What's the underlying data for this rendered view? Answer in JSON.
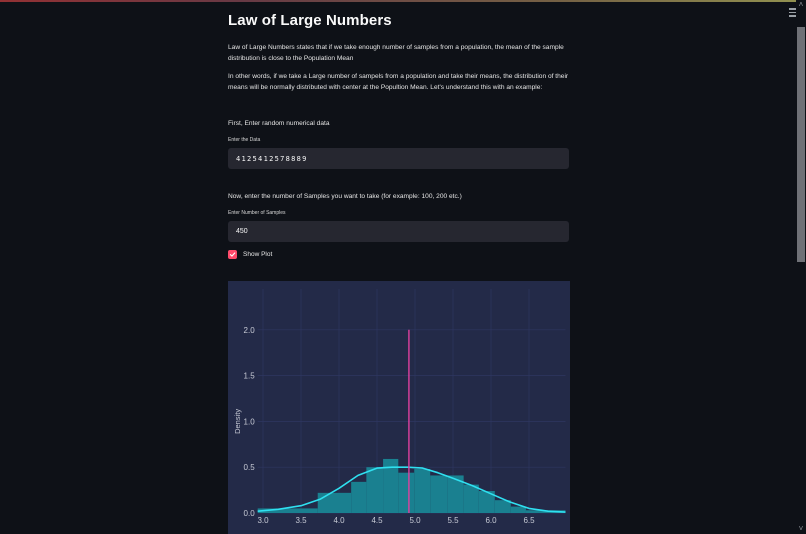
{
  "page": {
    "title": "Law of Large Numbers",
    "intro_paragraph_1": "Law of Large Numbers states that if we take enough number of samples from a population, the mean of the sample distribution is close to the Population Mean",
    "intro_paragraph_2": "In other words, if we take a Large number of sampels from a population and take their means, the distribution of their means will be normally distributed with center at the Popultion Mean. Let's understand this with an example:",
    "step_1_text": "First, Enter random numerical data",
    "step_2_text": "Now, enter the number of Samples you want to take (for example: 100, 200 etc.)"
  },
  "form": {
    "data_input": {
      "label": "Enter the Data",
      "value": "4125412578889"
    },
    "samples_input": {
      "label": "Enter Number of Samples",
      "value": "450"
    },
    "show_plot": {
      "label": "Show Plot",
      "checked": true
    }
  },
  "icons": {
    "menu": "hamburger-menu-icon",
    "checkbox": "checkmark-icon",
    "scroll_up": "˄",
    "scroll_down": "˅"
  },
  "colors": {
    "background": "#0e1117",
    "input_bg": "#262730",
    "accent": "#ff4b6b",
    "chart_bg": "#232a48",
    "hist_fill": "#1a8090",
    "kde_line": "#2fe0f0",
    "mean_line": "#e040a0"
  },
  "chart_data": {
    "type": "bar",
    "title": "",
    "xlabel": "",
    "ylabel": "Density",
    "xlim": [
      2.93,
      6.98
    ],
    "ylim": [
      0,
      2.3
    ],
    "grid": true,
    "x_ticks": [
      "3.0",
      "3.5",
      "4.0",
      "4.5",
      "5.0",
      "5.5",
      "6.0",
      "6.5"
    ],
    "y_ticks": [
      "0.0",
      "0.5",
      "1.0",
      "1.5",
      "2.0"
    ],
    "bins": [
      {
        "x0": 2.93,
        "x1": 3.72,
        "density": 0.05
      },
      {
        "x0": 3.72,
        "x1": 4.16,
        "density": 0.22
      },
      {
        "x0": 4.16,
        "x1": 4.36,
        "density": 0.34
      },
      {
        "x0": 4.36,
        "x1": 4.58,
        "density": 0.5
      },
      {
        "x0": 4.58,
        "x1": 4.78,
        "density": 0.59
      },
      {
        "x0": 4.78,
        "x1": 4.99,
        "density": 0.44
      },
      {
        "x0": 4.99,
        "x1": 5.2,
        "density": 0.48
      },
      {
        "x0": 5.2,
        "x1": 5.43,
        "density": 0.41
      },
      {
        "x0": 5.43,
        "x1": 5.64,
        "density": 0.41
      },
      {
        "x0": 5.64,
        "x1": 5.84,
        "density": 0.31
      },
      {
        "x0": 5.84,
        "x1": 6.05,
        "density": 0.24
      },
      {
        "x0": 6.05,
        "x1": 6.26,
        "density": 0.14
      },
      {
        "x0": 6.26,
        "x1": 6.46,
        "density": 0.07
      },
      {
        "x0": 6.46,
        "x1": 6.98,
        "density": 0.03
      }
    ],
    "kde": {
      "x": [
        2.93,
        3.2,
        3.5,
        3.75,
        4.0,
        4.25,
        4.5,
        4.7,
        4.9,
        5.1,
        5.3,
        5.5,
        5.75,
        6.0,
        6.25,
        6.5,
        6.75,
        6.98
      ],
      "y": [
        0.02,
        0.04,
        0.08,
        0.15,
        0.27,
        0.41,
        0.49,
        0.5,
        0.5,
        0.49,
        0.44,
        0.38,
        0.3,
        0.21,
        0.12,
        0.05,
        0.02,
        0.01
      ]
    },
    "mean_line": {
      "x": 4.92,
      "y0": 0.0,
      "y1": 2.0
    }
  }
}
